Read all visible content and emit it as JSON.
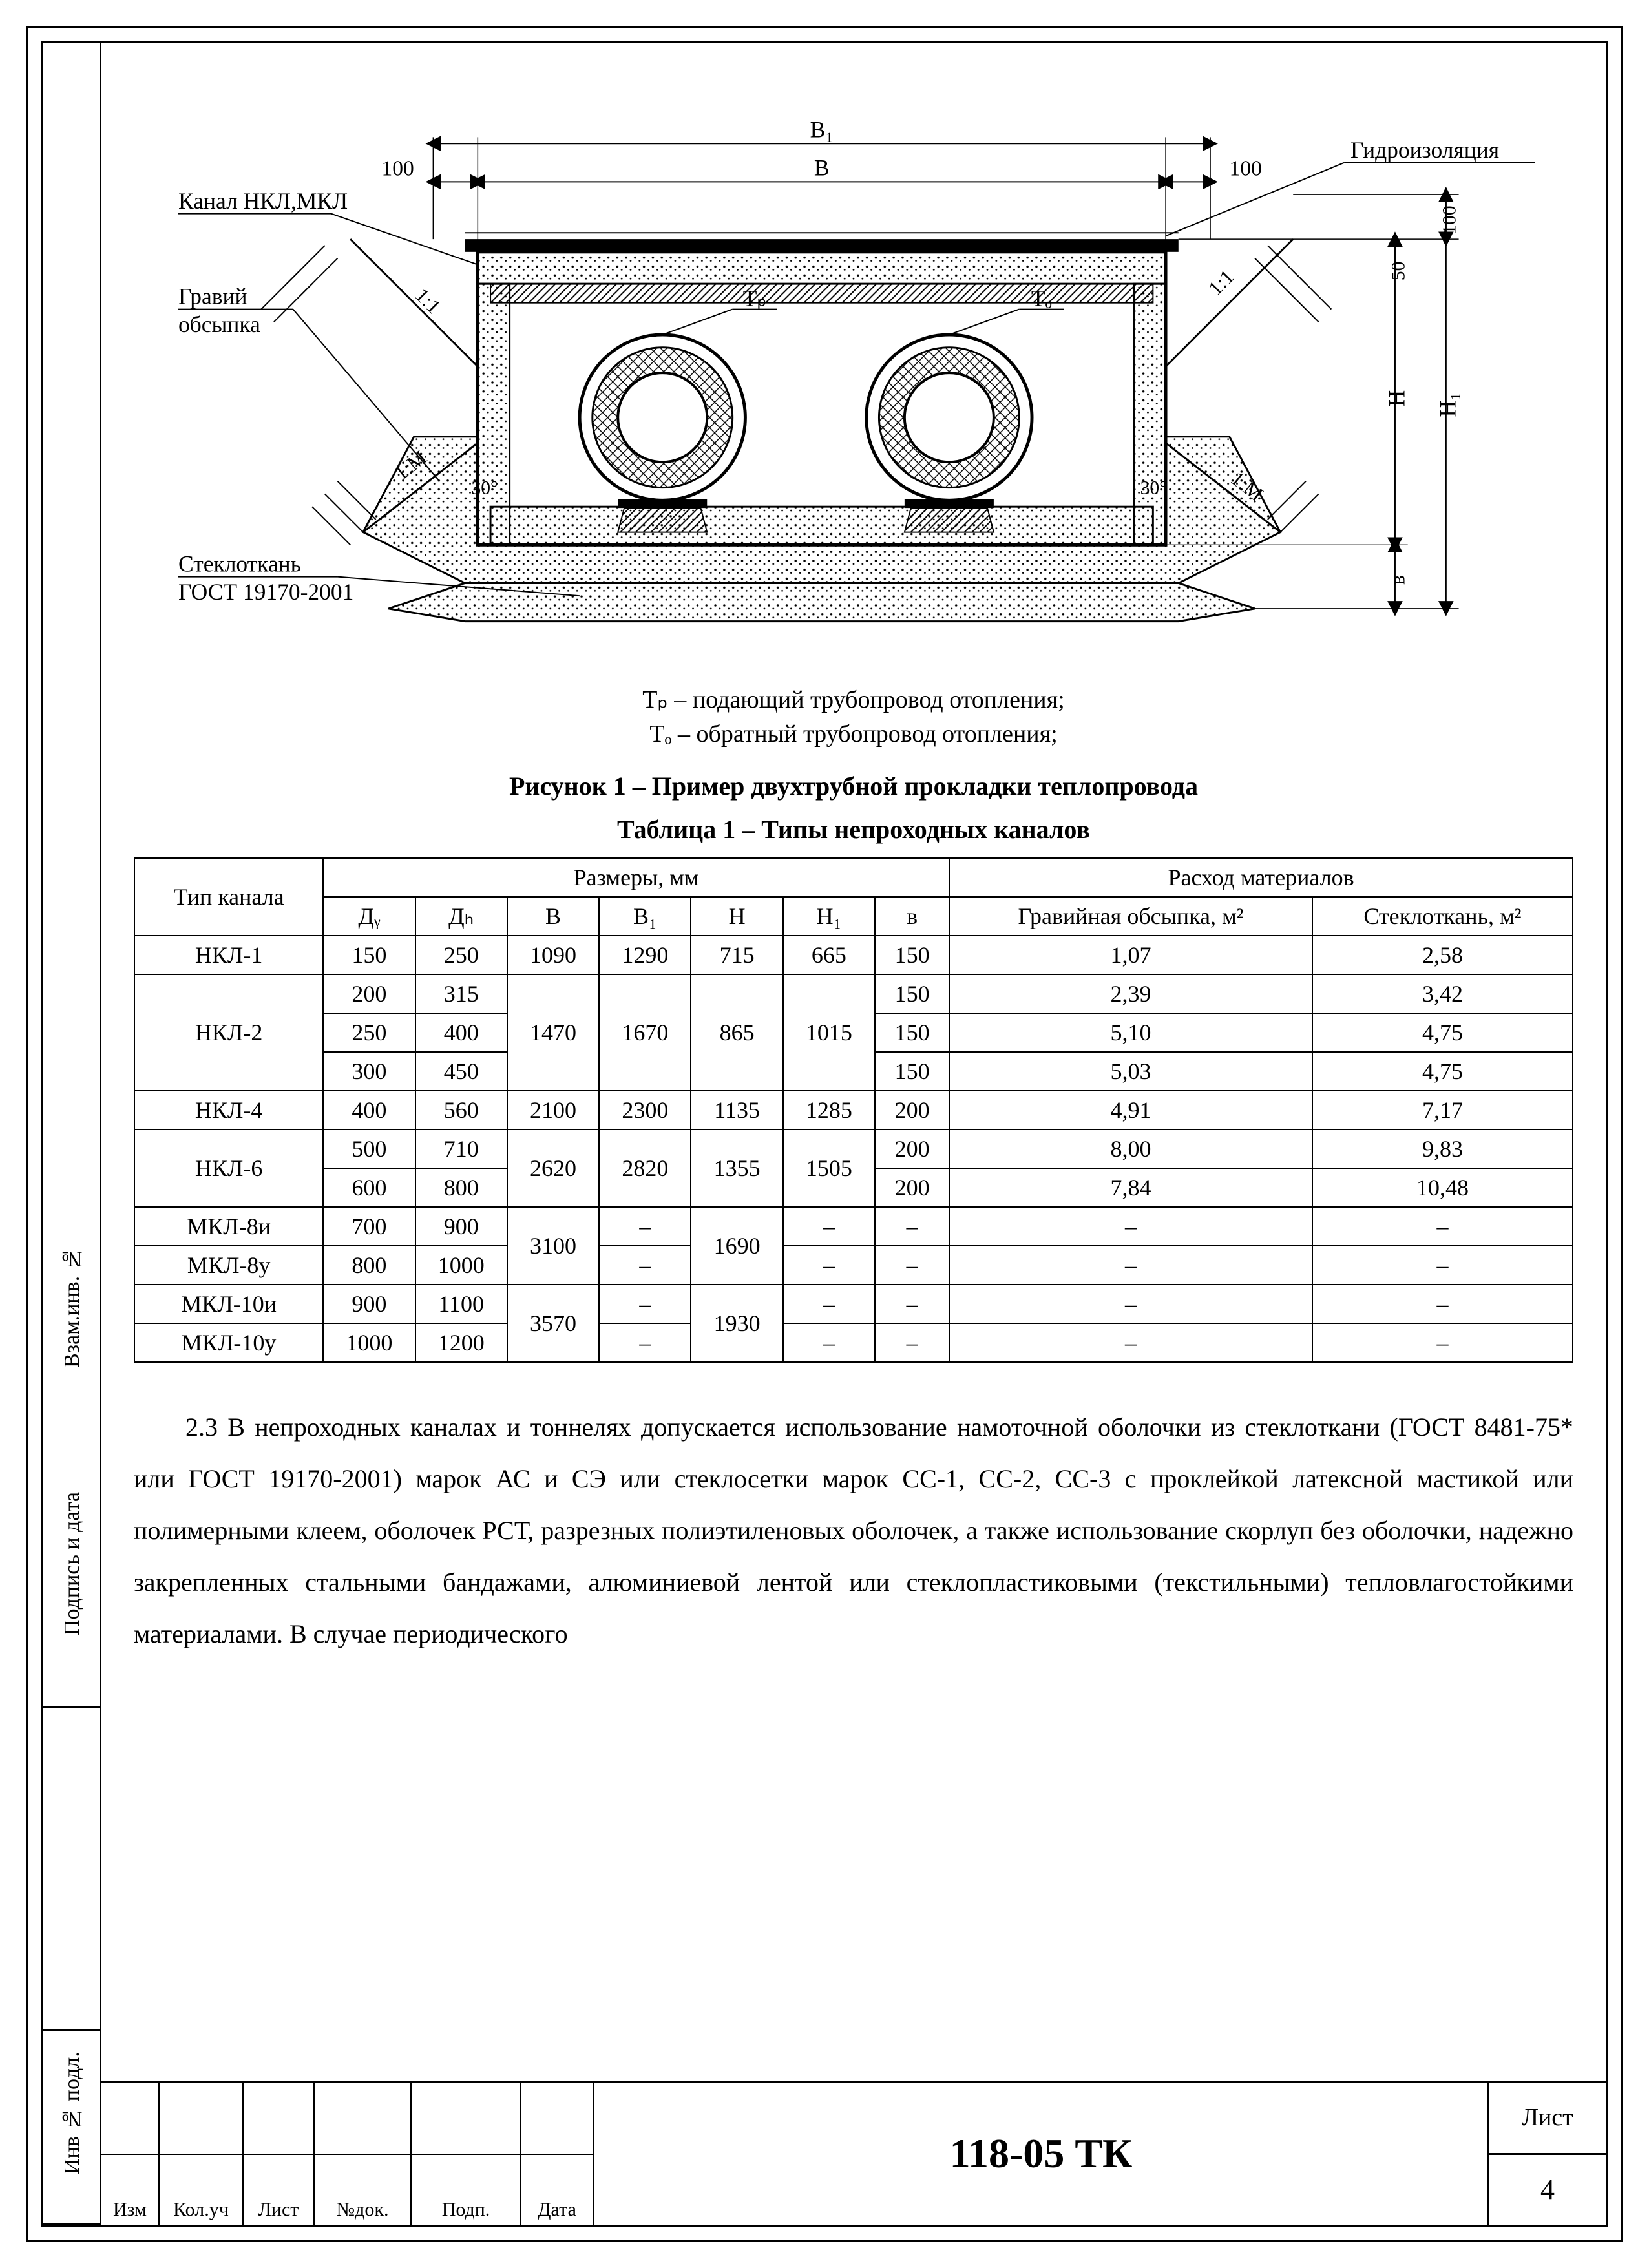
{
  "diagram": {
    "labels": {
      "channel": "Канал НКЛ,МКЛ",
      "gravel1": "Гравий",
      "gravel2": "обсыпка",
      "fiberglass1": "Стеклоткань",
      "fiberglass2": "ГОСТ 19170-2001",
      "waterproofing": "Гидроизоляция",
      "dim_B": "В",
      "dim_B1": "В₁",
      "dim_H": "H",
      "dim_H1": "H₁",
      "dim_v": "в",
      "dim_100_l": "100",
      "dim_100_r": "100",
      "dim_100_t": "100",
      "dim_50": "50",
      "angle_l": "30°",
      "angle_r": "30°",
      "slope_1_1_l": "1:1",
      "slope_1_1_r": "1:1",
      "slope_1_M_l": "1:М",
      "slope_1_M_r": "1:М",
      "Tp": "Тₚ",
      "To": "Тₒ"
    },
    "legend": {
      "Tp": "Тₚ – подающий трубопровод отопления;",
      "To": "Тₒ – обратный трубопровод отопления;"
    },
    "caption": "Рисунок 1 – Пример двухтрубной прокладки теплопровода",
    "colors": {
      "line": "#000000",
      "fill": "#ffffff"
    }
  },
  "table": {
    "caption": "Таблица 1 – Типы непроходных каналов",
    "header": {
      "type": "Тип ка­нала",
      "dims": "Размеры, мм",
      "mat": "Расход материалов",
      "Dy": "Дᵧ",
      "Dn": "Дₕ",
      "B": "В",
      "B1": "В₁",
      "H": "H",
      "H1": "H₁",
      "v": "в",
      "gravel": "Гравийная обсыпка, м²",
      "fiber": "Стекло­ткань, м²"
    },
    "rows": [
      {
        "type": "НКЛ-1",
        "Dy": "150",
        "Dn": "250",
        "B": "1090",
        "B1": "1290",
        "H": "715",
        "H1": "665",
        "v": "150",
        "g": "1,07",
        "f": "2,58",
        "rs": 1
      },
      {
        "type": "НКЛ-2",
        "Dy": "200",
        "Dn": "315",
        "B": "1470",
        "B1": "1670",
        "H": "865",
        "H1": "1015",
        "v": "150",
        "g": "2,39",
        "f": "3,42",
        "rs": 3
      },
      {
        "type": "",
        "Dy": "250",
        "Dn": "400",
        "B": "",
        "B1": "",
        "H": "",
        "H1": "",
        "v": "150",
        "g": "5,10",
        "f": "4,75",
        "rs": 0
      },
      {
        "type": "",
        "Dy": "300",
        "Dn": "450",
        "B": "",
        "B1": "",
        "H": "",
        "H1": "",
        "v": "150",
        "g": "5,03",
        "f": "4,75",
        "rs": 0
      },
      {
        "type": "НКЛ-4",
        "Dy": "400",
        "Dn": "560",
        "B": "2100",
        "B1": "2300",
        "H": "1135",
        "H1": "1285",
        "v": "200",
        "g": "4,91",
        "f": "7,17",
        "rs": 1
      },
      {
        "type": "НКЛ-6",
        "Dy": "500",
        "Dn": "710",
        "B": "2620",
        "B1": "2820",
        "H": "1355",
        "H1": "1505",
        "v": "200",
        "g": "8,00",
        "f": "9,83",
        "rs": 2
      },
      {
        "type": "",
        "Dy": "600",
        "Dn": "800",
        "B": "",
        "B1": "",
        "H": "",
        "H1": "",
        "v": "200",
        "g": "7,84",
        "f": "10,48",
        "rs": 0
      },
      {
        "type": "МКЛ-8и",
        "Dy": "700",
        "Dn": "900",
        "B": "3100",
        "B1": "–",
        "H": "1690",
        "H1": "–",
        "v": "–",
        "g": "–",
        "f": "–",
        "rs": 1,
        "Brs": 2,
        "Hrs": 2
      },
      {
        "type": "МКЛ-8у",
        "Dy": "800",
        "Dn": "1000",
        "B": "",
        "B1": "–",
        "H": "",
        "H1": "–",
        "v": "–",
        "g": "–",
        "f": "–",
        "rs": 1
      },
      {
        "type": "МКЛ-10и",
        "Dy": "900",
        "Dn": "1100",
        "B": "3570",
        "B1": "–",
        "H": "1930",
        "H1": "–",
        "v": "–",
        "g": "–",
        "f": "–",
        "rs": 1,
        "Brs": 2,
        "Hrs": 2
      },
      {
        "type": "МКЛ-10у",
        "Dy": "1000",
        "Dn": "1200",
        "B": "",
        "B1": "–",
        "H": "",
        "H1": "–",
        "v": "–",
        "g": "–",
        "f": "–",
        "rs": 1
      }
    ]
  },
  "paragraph": "2.3 В непроходных каналах и тоннелях допускается использование намоточной оболочки из стеклоткани (ГОСТ 8481-75* или ГОСТ 19170-2001) марок АС и СЭ или стеклосетки марок СС-1, СС-2, СС-3 с проклейкой латексной мастикой или полимерными клеем, оболочек РСТ, разрезных полиэтиленовых оболочек, а также использование скорлуп без оболочки, надежно закрепленных стальными бандажами, алюминиевой лентой или стеклопластиковыми (текстильными) тепловлагостойкими материалами. В случае периодического",
  "titleblock": {
    "code": "118-05 ТК",
    "sheet_label": "Лист",
    "sheet_no": "4",
    "cols": [
      "Изм",
      "Кол.уч",
      "Лист",
      "№док.",
      "Подп.",
      "Дата"
    ]
  },
  "sidestamp": {
    "c1": "Взам.инв. №",
    "c2": "Подпись и дата",
    "c3": "Инв № подл."
  }
}
